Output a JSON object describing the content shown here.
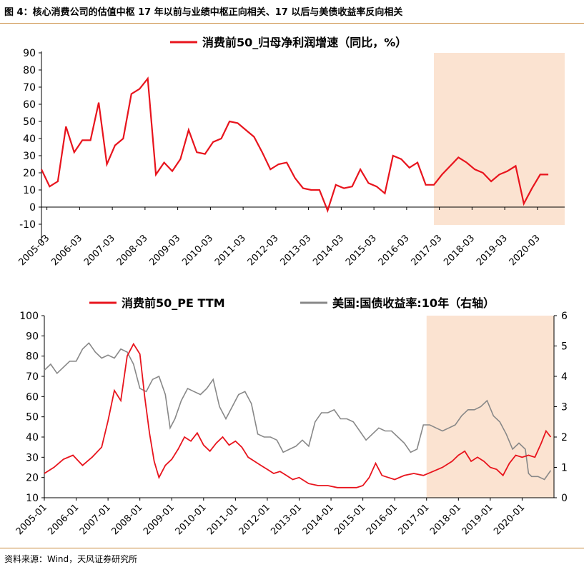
{
  "figure": {
    "title": "图 4：核心消费公司的估值中枢 17 年以前与业绩中枢正向相关、17 以后与美债收益率反向相关",
    "source": "资料来源：Wind，天风证券研究所",
    "highlight_color": "#fbe3d1",
    "accent_rule_color": "#c9893b"
  },
  "chart_data": [
    {
      "type": "line",
      "title": "",
      "legend": [
        "消费前50_归母净利润增速（同比，%）"
      ],
      "categories": [
        "2005-03",
        "2006-03",
        "2007-03",
        "2008-03",
        "2009-03",
        "2010-03",
        "2011-03",
        "2012-03",
        "2013-03",
        "2014-03",
        "2015-03",
        "2016-03",
        "2017-03",
        "2018-03",
        "2019-03",
        "2020-03"
      ],
      "ylim": [
        -10,
        90
      ],
      "yticks": [
        -10,
        0,
        10,
        20,
        30,
        40,
        50,
        60,
        70,
        80,
        90
      ],
      "highlight": {
        "from": "2017-01",
        "to": "2020-12",
        "color": "#fbe3d1"
      },
      "series": [
        {
          "name": "消费前50_归母净利润增速（同比，%）",
          "color": "#e8141d",
          "x": [
            2005.0,
            2005.25,
            2005.5,
            2005.75,
            2006.0,
            2006.25,
            2006.5,
            2006.75,
            2007.0,
            2007.25,
            2007.5,
            2007.75,
            2008.0,
            2008.25,
            2008.5,
            2008.75,
            2009.0,
            2009.25,
            2009.5,
            2009.75,
            2010.0,
            2010.25,
            2010.5,
            2010.75,
            2011.0,
            2011.25,
            2011.5,
            2011.75,
            2012.0,
            2012.25,
            2012.5,
            2012.75,
            2013.0,
            2013.25,
            2013.5,
            2013.75,
            2014.0,
            2014.25,
            2014.5,
            2014.75,
            2015.0,
            2015.25,
            2015.5,
            2015.75,
            2016.0,
            2016.25,
            2016.5,
            2016.75,
            2017.0,
            2017.25,
            2017.5,
            2017.75,
            2018.0,
            2018.25,
            2018.5,
            2018.75,
            2019.0,
            2019.25,
            2019.5,
            2019.75,
            2020.0,
            2020.25,
            2020.5
          ],
          "values": [
            22,
            12,
            15,
            47,
            32,
            39,
            39,
            61,
            25,
            36,
            40,
            66,
            69,
            75,
            19,
            26,
            21,
            28,
            45,
            32,
            31,
            38,
            40,
            50,
            49,
            45,
            41,
            32,
            22,
            25,
            26,
            17,
            11,
            10,
            10,
            -2,
            13,
            11,
            12,
            22,
            14,
            12,
            8,
            30,
            28,
            23,
            26,
            13,
            13,
            19,
            24,
            29,
            26,
            22,
            20,
            15,
            19,
            21,
            24,
            2,
            11,
            19,
            19
          ]
        }
      ]
    },
    {
      "type": "line",
      "title": "",
      "legend": [
        "消费前50_PE TTM",
        "美国:国债收益率:10年（右轴）"
      ],
      "categories": [
        "2005-01",
        "2006-01",
        "2007-01",
        "2008-01",
        "2009-01",
        "2010-01",
        "2011-01",
        "2012-01",
        "2013-01",
        "2014-01",
        "2015-01",
        "2016-01",
        "2017-01",
        "2018-01",
        "2019-01",
        "2020-01"
      ],
      "ylim": [
        10,
        100
      ],
      "yticks": [
        10,
        20,
        30,
        40,
        50,
        60,
        70,
        80,
        90,
        100
      ],
      "y2lim": [
        0,
        6
      ],
      "y2ticks": [
        0,
        1,
        2,
        3,
        4,
        5,
        6
      ],
      "highlight": {
        "from": "2017-01",
        "to": "2020-12",
        "color": "#fbe3d1"
      },
      "series": [
        {
          "name": "消费前50_PE TTM",
          "axis": "left",
          "color": "#e8141d",
          "x": [
            2005.0,
            2005.3,
            2005.6,
            2005.9,
            2006.2,
            2006.5,
            2006.8,
            2007.0,
            2007.2,
            2007.4,
            2007.6,
            2007.8,
            2008.0,
            2008.15,
            2008.3,
            2008.45,
            2008.6,
            2008.8,
            2009.0,
            2009.2,
            2009.4,
            2009.6,
            2009.8,
            2010.0,
            2010.2,
            2010.4,
            2010.6,
            2010.8,
            2011.0,
            2011.2,
            2011.4,
            2011.6,
            2011.8,
            2012.0,
            2012.2,
            2012.4,
            2012.6,
            2012.8,
            2013.0,
            2013.3,
            2013.6,
            2013.9,
            2014.2,
            2014.5,
            2014.8,
            2015.0,
            2015.2,
            2015.4,
            2015.6,
            2015.8,
            2016.0,
            2016.3,
            2016.6,
            2016.9,
            2017.2,
            2017.5,
            2017.8,
            2018.0,
            2018.2,
            2018.4,
            2018.6,
            2018.8,
            2019.0,
            2019.2,
            2019.4,
            2019.6,
            2019.8,
            2020.0,
            2020.2,
            2020.4,
            2020.6,
            2020.75,
            2020.9
          ],
          "values": [
            22,
            25,
            29,
            31,
            26,
            30,
            35,
            48,
            63,
            58,
            80,
            86,
            81,
            60,
            42,
            28,
            20,
            26,
            29,
            34,
            40,
            38,
            42,
            36,
            33,
            37,
            40,
            36,
            38,
            35,
            30,
            28,
            26,
            24,
            22,
            23,
            21,
            19,
            20,
            17,
            16,
            16,
            15,
            15,
            15,
            16,
            20,
            27,
            21,
            20,
            19,
            21,
            22,
            21,
            23,
            25,
            28,
            31,
            33,
            28,
            30,
            28,
            25,
            24,
            21,
            27,
            31,
            30,
            31,
            30,
            37,
            43,
            40
          ]
        },
        {
          "name": "美国:国债收益率:10年（右轴）",
          "axis": "right",
          "color": "#888888",
          "x": [
            2005.0,
            2005.2,
            2005.4,
            2005.6,
            2005.8,
            2006.0,
            2006.2,
            2006.4,
            2006.6,
            2006.8,
            2007.0,
            2007.2,
            2007.4,
            2007.6,
            2007.8,
            2008.0,
            2008.2,
            2008.4,
            2008.6,
            2008.8,
            2008.95,
            2009.1,
            2009.3,
            2009.5,
            2009.7,
            2009.9,
            2010.1,
            2010.3,
            2010.5,
            2010.7,
            2010.9,
            2011.1,
            2011.3,
            2011.5,
            2011.7,
            2011.9,
            2012.1,
            2012.3,
            2012.5,
            2012.7,
            2012.9,
            2013.1,
            2013.3,
            2013.5,
            2013.7,
            2013.9,
            2014.1,
            2014.3,
            2014.5,
            2014.7,
            2014.9,
            2015.1,
            2015.3,
            2015.5,
            2015.7,
            2015.9,
            2016.1,
            2016.3,
            2016.5,
            2016.7,
            2016.9,
            2017.1,
            2017.3,
            2017.5,
            2017.7,
            2017.9,
            2018.1,
            2018.3,
            2018.5,
            2018.7,
            2018.9,
            2019.1,
            2019.3,
            2019.5,
            2019.7,
            2019.9,
            2020.1,
            2020.2,
            2020.3,
            2020.5,
            2020.7,
            2020.9
          ],
          "values": [
            4.2,
            4.4,
            4.1,
            4.3,
            4.5,
            4.5,
            4.9,
            5.1,
            4.8,
            4.6,
            4.7,
            4.6,
            4.9,
            4.8,
            4.4,
            3.6,
            3.5,
            3.9,
            4.0,
            3.4,
            2.3,
            2.6,
            3.2,
            3.6,
            3.5,
            3.4,
            3.6,
            3.9,
            3.0,
            2.6,
            3.0,
            3.4,
            3.5,
            3.1,
            2.1,
            2.0,
            2.0,
            1.9,
            1.5,
            1.6,
            1.7,
            1.9,
            1.7,
            2.5,
            2.8,
            2.8,
            2.9,
            2.6,
            2.6,
            2.5,
            2.2,
            1.9,
            2.1,
            2.3,
            2.2,
            2.2,
            2.0,
            1.8,
            1.5,
            1.6,
            2.4,
            2.4,
            2.3,
            2.2,
            2.3,
            2.4,
            2.7,
            2.9,
            2.9,
            3.0,
            3.2,
            2.7,
            2.5,
            2.1,
            1.6,
            1.8,
            1.6,
            0.8,
            0.7,
            0.7,
            0.6,
            0.9
          ]
        }
      ]
    }
  ]
}
